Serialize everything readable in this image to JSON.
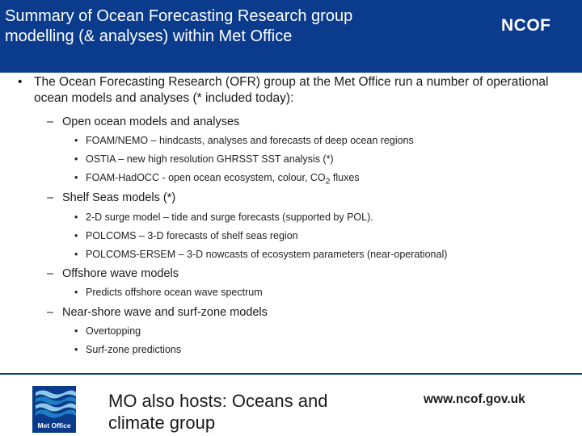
{
  "header": {
    "title_line1": "Summary of Ocean Forecasting Research group",
    "title_line2": "modelling (& analyses) within Met Office",
    "logo_text": "NCOF"
  },
  "intro": {
    "bullet": "•",
    "text": "The Ocean Forecasting Research (OFR) group at the Met Office run a number of operational ocean models and analyses (* included today):"
  },
  "sections": [
    {
      "dash": "–",
      "heading": "Open ocean models and analyses",
      "items": [
        "FOAM/NEMO – hindcasts, analyses and forecasts of deep ocean regions",
        "OSTIA – new high resolution GHRSST SST analysis (*)",
        "FOAM-HadOCC - open ocean ecosystem, colour, CO",
        "2",
        " fluxes"
      ]
    },
    {
      "dash": "–",
      "heading": "Shelf Seas models (*)",
      "items": [
        "2-D surge model – tide and surge forecasts (supported by POL).",
        "POLCOMS – 3-D forecasts of shelf seas region",
        "POLCOMS-ERSEM – 3-D nowcasts of ecosystem parameters (near-operational)"
      ]
    },
    {
      "dash": "–",
      "heading": "Offshore wave models",
      "items": [
        "Predicts offshore ocean wave spectrum"
      ]
    },
    {
      "dash": "–",
      "heading": "Near-shore wave and surf-zone models",
      "items": [
        "Overtopping",
        "Surf-zone predictions"
      ]
    }
  ],
  "footer": {
    "logo_text": "Met Office",
    "hosts_text": "MO also hosts: Oceans and climate group",
    "url": "www.ncof.gov.uk"
  },
  "colors": {
    "header_bg": "#0a3b8c",
    "logo_wave": "#1d7fc4",
    "logo_wave_alt": "#8fc8e8"
  }
}
